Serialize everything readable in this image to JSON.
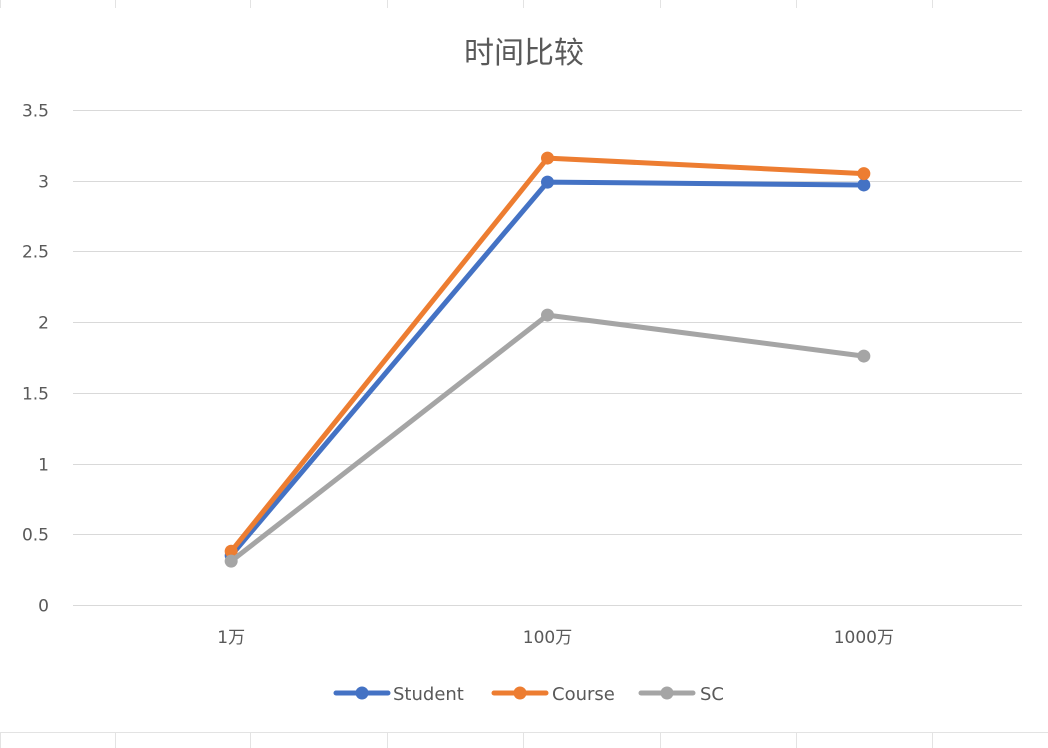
{
  "chart_data": {
    "type": "line",
    "title": "时间比较",
    "categories": [
      "1万",
      "100万",
      "1000万"
    ],
    "ylim": [
      0,
      3.5
    ],
    "yticks": [
      "0",
      "0.5",
      "1",
      "1.5",
      "2",
      "2.5",
      "3",
      "3.5"
    ],
    "grid": true,
    "legend_position": "bottom",
    "series": [
      {
        "name": "Student",
        "values": [
          0.35,
          2.99,
          2.97
        ],
        "color": "#4472C4"
      },
      {
        "name": "Course",
        "values": [
          0.38,
          3.16,
          3.05
        ],
        "color": "#ED7D31"
      },
      {
        "name": "SC",
        "values": [
          0.31,
          2.05,
          1.76
        ],
        "color": "#A5A5A5"
      }
    ]
  },
  "colors": {
    "gridline": "#D9D9D9",
    "text": "#595959",
    "background": "#FFFFFF"
  }
}
